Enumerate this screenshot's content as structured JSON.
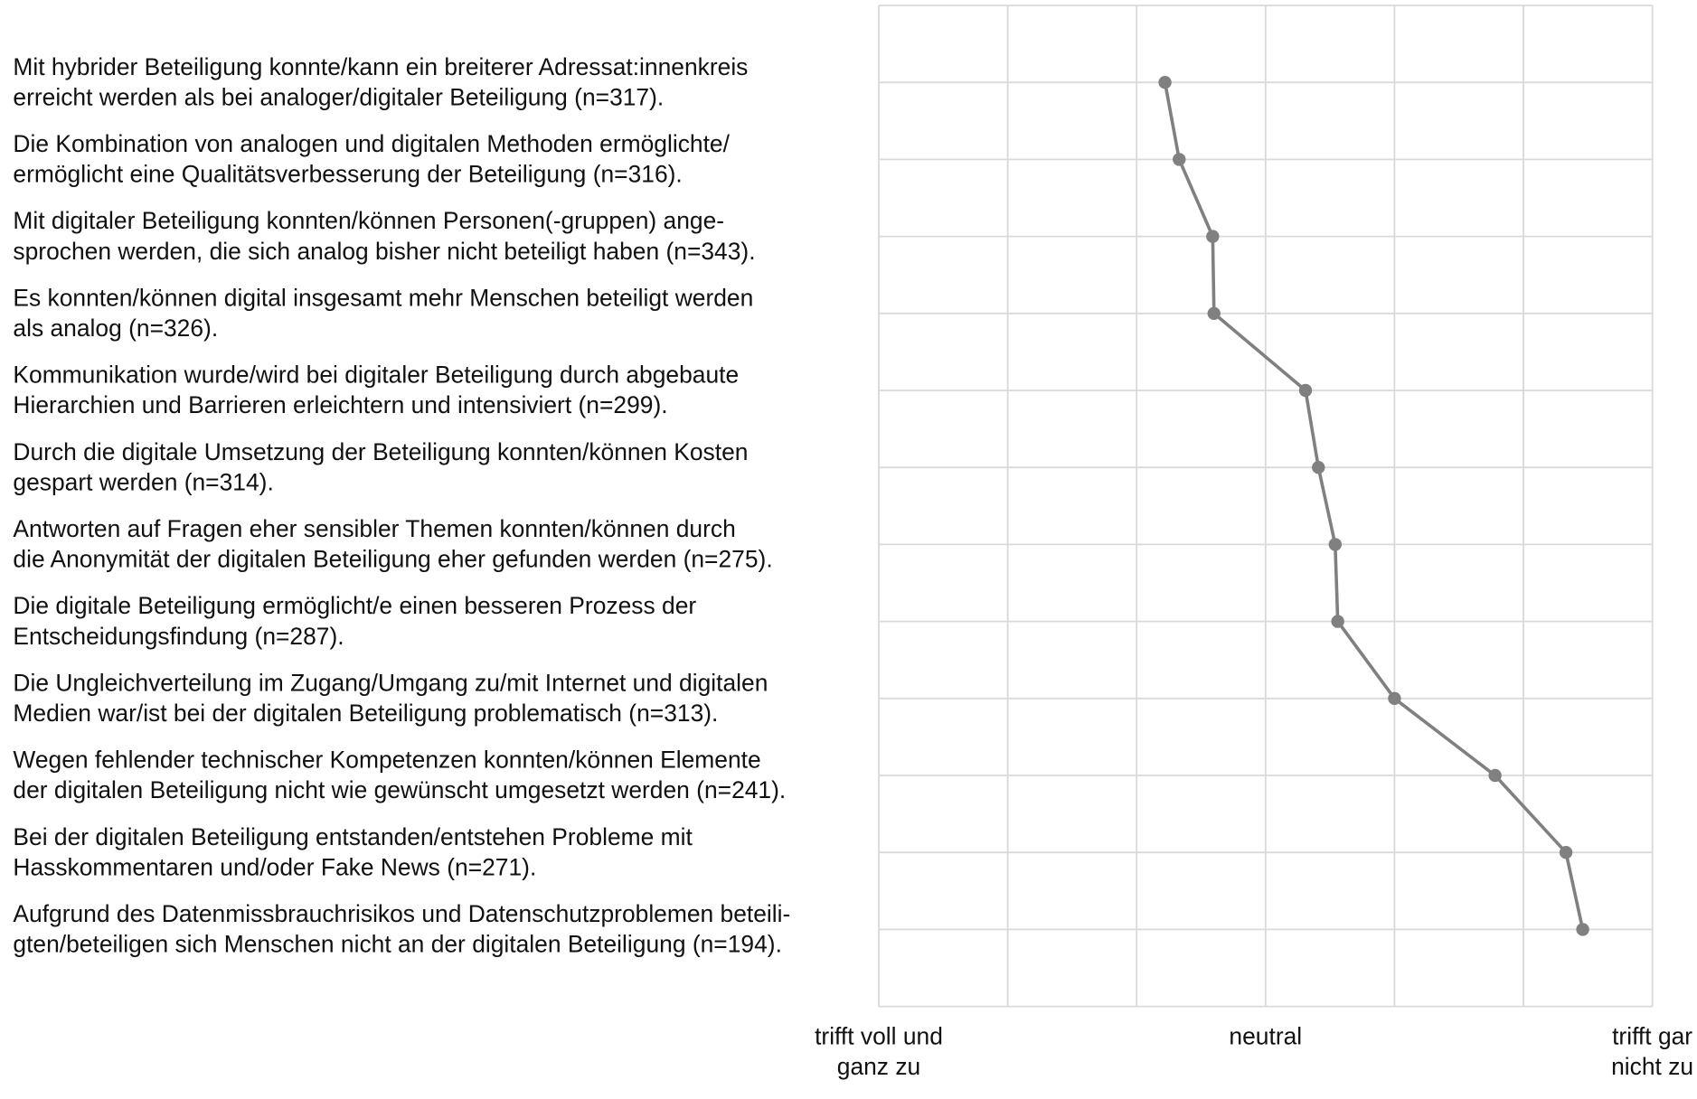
{
  "chart_data": {
    "type": "line",
    "orientation": "horizontal",
    "categories": [
      "Mit hybrider Beteiligung konnte/kann ein breiterer Adressat:innenkreis\nerreicht werden als bei analoger/digitaler Beteiligung (n=317).",
      "Die Kombination von analogen und digitalen Methoden ermöglichte/\nermöglicht eine Qualitätsverbesserung der Beteiligung (n=316).",
      "Mit digitaler Beteiligung konnten/können Personen(-gruppen) ange-\nsprochen werden, die sich analog bisher nicht beteiligt haben (n=343).",
      "Es konnten/können digital insgesamt mehr Menschen beteiligt werden\nals analog (n=326).",
      "Kommunikation wurde/wird bei digitaler Beteiligung durch abgebaute\nHierarchien und Barrieren erleichtern und intensiviert (n=299).",
      "Durch die digitale Umsetzung der Beteiligung konnten/können Kosten\ngespart werden (n=314).",
      "Antworten auf Fragen eher sensibler Themen konnten/können durch\ndie Anonymität der digitalen Beteiligung eher gefunden werden (n=275).",
      "Die digitale Beteiligung ermöglicht/e einen besseren Prozess der\nEntscheidungsfindung (n=287).",
      "Die Ungleichverteilung im Zugang/Umgang zu/mit Internet und digitalen\nMedien war/ist bei der digitalen Beteiligung problematisch (n=313).",
      "Wegen fehlender technischer Kompetenzen konnten/können Elemente\nder digitalen Beteiligung nicht wie gewünscht umgesetzt werden (n=241).",
      "Bei der digitalen Beteiligung entstanden/entstehen Probleme mit\nHasskommentaren und/oder Fake News (n=271).",
      "Aufgrund des Datenmissbrauchrisikos und Datenschutzproblemen beteili-\ngten/beteiligen sich Menschen nicht an der digitalen Beteiligung (n=194)."
    ],
    "values": [
      3.22,
      3.33,
      3.59,
      3.6,
      4.31,
      4.41,
      4.54,
      4.56,
      5.0,
      5.78,
      6.33,
      6.46
    ],
    "color": "#808080",
    "xlim": [
      1,
      7
    ],
    "xticks": [
      {
        "value": 1,
        "label": "trifft voll und\nganz zu"
      },
      {
        "value": 2,
        "label": null
      },
      {
        "value": 3,
        "label": null
      },
      {
        "value": 4,
        "label": "neutral"
      },
      {
        "value": 5,
        "label": null
      },
      {
        "value": 6,
        "label": null
      },
      {
        "value": 7,
        "label": "trifft gar\nnicht zu"
      }
    ],
    "grid": true
  }
}
